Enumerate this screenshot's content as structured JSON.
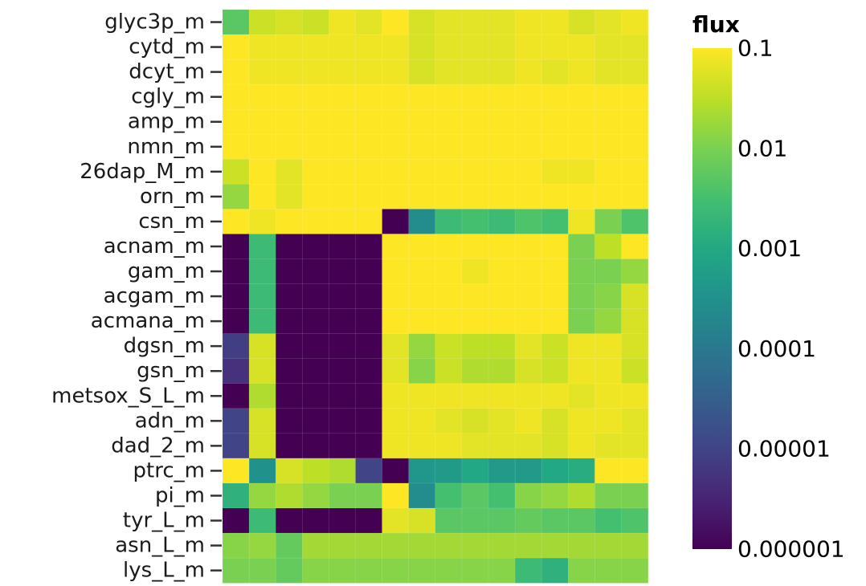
{
  "chart_data": {
    "type": "heatmap",
    "legend_title": "flux",
    "scale": "log10",
    "colormap": "viridis",
    "color_range": [
      -6,
      -1
    ],
    "legend_ticks": [
      {
        "label": "0.1",
        "log": -1
      },
      {
        "label": "0.01",
        "log": -2
      },
      {
        "label": "0.001",
        "log": -3
      },
      {
        "label": "0.0001",
        "log": -4
      },
      {
        "label": "0.00001",
        "log": -5
      },
      {
        "label": "0.000001",
        "log": -6
      }
    ],
    "rows": [
      "glyc3p_m",
      "cytd_m",
      "dcyt_m",
      "cgly_m",
      "amp_m",
      "nmn_m",
      "26dap_M_m",
      "orn_m",
      "csn_m",
      "acnam_m",
      "gam_m",
      "acgam_m",
      "acmana_m",
      "dgsn_m",
      "gsn_m",
      "metsox_S_L_m",
      "adn_m",
      "dad_2_m",
      "ptrc_m",
      "pi_m",
      "tyr_L_m",
      "asn_L_m",
      "lys_L_m"
    ],
    "num_columns": 16,
    "values_log10": [
      [
        -2.3,
        -1.4,
        -1.3,
        -1.4,
        -1.1,
        -1.2,
        -1.0,
        -1.3,
        -1.2,
        -1.2,
        -1.2,
        -1.1,
        -1.1,
        -1.3,
        -1.2,
        -1.1
      ],
      [
        -1.0,
        -1.1,
        -1.1,
        -1.1,
        -1.1,
        -1.1,
        -1.1,
        -1.3,
        -1.2,
        -1.2,
        -1.2,
        -1.1,
        -1.1,
        -1.1,
        -1.2,
        -1.2
      ],
      [
        -1.0,
        -1.1,
        -1.1,
        -1.1,
        -1.1,
        -1.1,
        -1.1,
        -1.3,
        -1.2,
        -1.2,
        -1.2,
        -1.1,
        -1.2,
        -1.1,
        -1.2,
        -1.2
      ],
      [
        -1.0,
        -1.0,
        -1.0,
        -1.0,
        -1.0,
        -1.0,
        -1.0,
        -1.0,
        -1.0,
        -1.0,
        -1.0,
        -1.0,
        -1.0,
        -1.0,
        -1.0,
        -1.0
      ],
      [
        -1.0,
        -1.0,
        -1.0,
        -1.0,
        -1.0,
        -1.0,
        -1.0,
        -1.0,
        -1.0,
        -1.0,
        -1.0,
        -1.0,
        -1.0,
        -1.0,
        -1.0,
        -1.0
      ],
      [
        -1.0,
        -1.0,
        -1.0,
        -1.0,
        -1.0,
        -1.0,
        -1.0,
        -1.0,
        -1.0,
        -1.0,
        -1.0,
        -1.0,
        -1.0,
        -1.0,
        -1.0,
        -1.0
      ],
      [
        -1.4,
        -1.0,
        -1.2,
        -1.0,
        -1.0,
        -1.0,
        -1.0,
        -1.0,
        -1.0,
        -1.0,
        -1.0,
        -1.0,
        -1.1,
        -1.1,
        -1.0,
        -1.0
      ],
      [
        -1.8,
        -1.0,
        -1.2,
        -1.0,
        -1.0,
        -1.0,
        -1.0,
        -1.0,
        -1.0,
        -1.0,
        -1.0,
        -1.0,
        -1.0,
        -1.0,
        -1.0,
        -1.0
      ],
      [
        -1.0,
        -1.1,
        -1.0,
        -1.0,
        -1.0,
        -1.0,
        -6.0,
        -3.6,
        -2.6,
        -2.5,
        -2.6,
        -2.4,
        -2.5,
        -1.1,
        -2.0,
        -2.4
      ],
      [
        -6.0,
        -2.6,
        -6.0,
        -6.0,
        -6.0,
        -6.0,
        -1.0,
        -1.0,
        -1.0,
        -1.0,
        -1.0,
        -1.0,
        -1.0,
        -2.0,
        -1.5,
        -1.0
      ],
      [
        -6.0,
        -2.6,
        -6.0,
        -6.0,
        -6.0,
        -6.0,
        -1.0,
        -1.0,
        -1.0,
        -1.1,
        -1.0,
        -1.0,
        -1.0,
        -2.0,
        -2.0,
        -1.8
      ],
      [
        -6.0,
        -2.6,
        -6.0,
        -6.0,
        -6.0,
        -6.0,
        -1.0,
        -1.0,
        -1.0,
        -1.0,
        -1.0,
        -1.0,
        -1.0,
        -2.0,
        -1.9,
        -1.3
      ],
      [
        -6.0,
        -2.6,
        -6.0,
        -6.0,
        -6.0,
        -6.0,
        -1.0,
        -1.0,
        -1.0,
        -1.0,
        -1.0,
        -1.0,
        -1.0,
        -2.0,
        -1.8,
        -1.3
      ],
      [
        -5.1,
        -1.3,
        -6.0,
        -6.0,
        -6.0,
        -6.0,
        -1.2,
        -1.8,
        -1.4,
        -1.5,
        -1.5,
        -1.2,
        -1.4,
        -1.1,
        -1.1,
        -1.3
      ],
      [
        -5.3,
        -1.3,
        -6.0,
        -6.0,
        -6.0,
        -6.0,
        -1.2,
        -1.9,
        -1.4,
        -1.6,
        -1.6,
        -1.3,
        -1.4,
        -1.1,
        -1.1,
        -1.4
      ],
      [
        -6.0,
        -1.6,
        -6.0,
        -6.0,
        -6.0,
        -6.0,
        -1.1,
        -1.1,
        -1.1,
        -1.1,
        -1.1,
        -1.1,
        -1.1,
        -1.2,
        -1.1,
        -1.1
      ],
      [
        -5.0,
        -1.3,
        -6.0,
        -6.0,
        -6.0,
        -6.0,
        -1.1,
        -1.1,
        -1.2,
        -1.3,
        -1.2,
        -1.1,
        -1.3,
        -1.1,
        -1.1,
        -1.2
      ],
      [
        -5.0,
        -1.3,
        -6.0,
        -6.0,
        -6.0,
        -6.0,
        -1.1,
        -1.1,
        -1.1,
        -1.2,
        -1.2,
        -1.2,
        -1.3,
        -1.1,
        -1.2,
        -1.2
      ],
      [
        -1.0,
        -3.5,
        -1.3,
        -1.5,
        -1.6,
        -5.0,
        -6.0,
        -3.4,
        -3.3,
        -3.0,
        -3.3,
        -3.3,
        -3.0,
        -2.9,
        -1.0,
        -1.0
      ],
      [
        -2.8,
        -1.8,
        -1.6,
        -1.8,
        -2.0,
        -2.0,
        -1.0,
        -3.6,
        -2.5,
        -2.3,
        -2.5,
        -1.9,
        -1.8,
        -1.6,
        -2.0,
        -2.0
      ],
      [
        -6.0,
        -2.6,
        -6.0,
        -6.0,
        -6.0,
        -6.0,
        -1.2,
        -1.3,
        -2.3,
        -2.3,
        -2.3,
        -2.2,
        -2.3,
        -2.3,
        -2.5,
        -2.4
      ],
      [
        -1.9,
        -1.8,
        -2.2,
        -1.7,
        -1.7,
        -1.7,
        -1.7,
        -1.7,
        -1.7,
        -1.7,
        -1.7,
        -1.7,
        -1.7,
        -1.7,
        -1.7,
        -1.7
      ],
      [
        -2.0,
        -2.0,
        -2.2,
        -1.9,
        -1.9,
        -1.9,
        -1.9,
        -1.9,
        -1.9,
        -1.9,
        -1.9,
        -2.6,
        -2.8,
        -1.9,
        -1.9,
        -1.9
      ]
    ]
  }
}
